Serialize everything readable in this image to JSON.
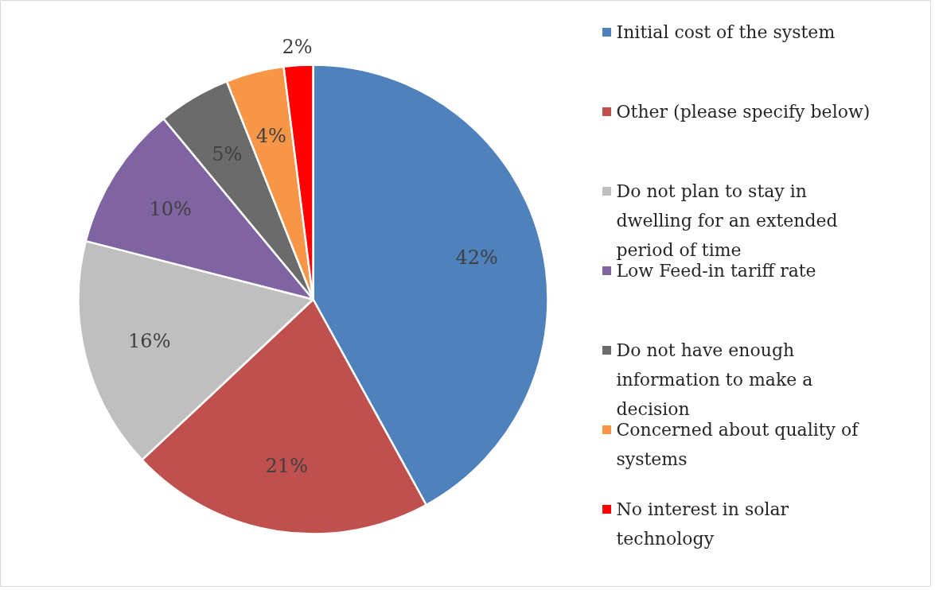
{
  "chart_data": {
    "type": "pie",
    "categories": [
      "Initial cost of the system",
      "Other (please specify below)",
      "Do not plan to stay in dwelling for an extended period of time",
      "Low Feed-in tariff rate",
      "Do not have enough information to make a decision",
      "Concerned about quality of systems",
      "No interest in solar technology"
    ],
    "values": [
      42,
      21,
      16,
      10,
      5,
      4,
      2
    ],
    "colors": [
      "#4f81bd",
      "#c0504d",
      "#bfbfbf",
      "#8064a2",
      "#6b6b6b",
      "#f79646",
      "#ff0000"
    ],
    "value_labels": [
      "42%",
      "21%",
      "16%",
      "10%",
      "5%",
      "4%",
      "2%"
    ],
    "legend": "right"
  }
}
